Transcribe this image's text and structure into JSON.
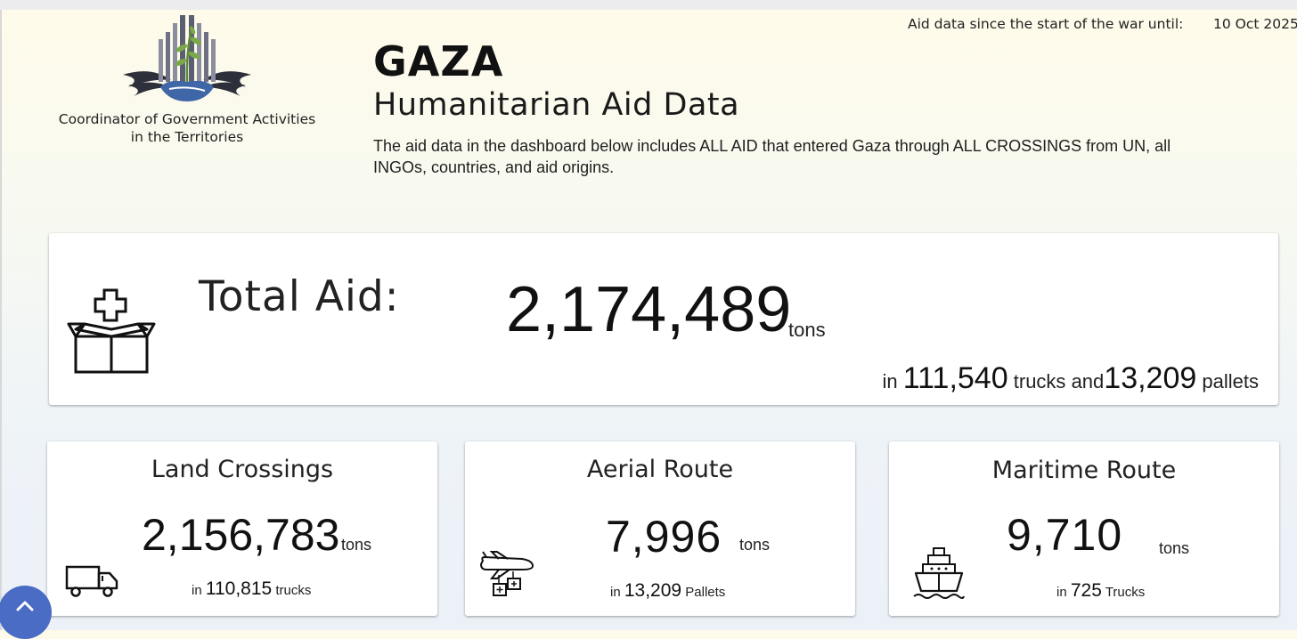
{
  "header": {
    "org_line1": "Coordinator of Government Activities",
    "org_line2": "in the Territories",
    "title": "GAZA",
    "subtitle": "Humanitarian Aid Data",
    "description": "The aid data in the dashboard below includes ALL AID that entered Gaza through ALL CROSSINGS from UN, all INGOs, countries, and aid origins.",
    "date_label": "Aid data since the start of the war until:",
    "date_value": "10 Oct 2025"
  },
  "total": {
    "label": "Total Aid:",
    "tons": "2,174,489",
    "tons_unit": "tons",
    "in_label": "in",
    "trucks": "111,540",
    "trucks_unit": "trucks",
    "and_label": "and",
    "pallets": "13,209",
    "pallets_unit": "pallets",
    "icon": "aid-box-icon"
  },
  "routes": [
    {
      "title": "Land Crossings",
      "tons": "2,156,783",
      "unit": "tons",
      "in_label": "in",
      "count": "110,815",
      "count_unit": "trucks",
      "icon": "truck-icon"
    },
    {
      "title": "Aerial Route",
      "tons": "7,996",
      "unit": "tons",
      "in_label": "in",
      "count": "13,209",
      "count_unit": "Pallets",
      "icon": "airdrop-icon"
    },
    {
      "title": "Maritime Route",
      "tons": "9,710",
      "unit": "tons",
      "in_label": "in",
      "count": "725",
      "count_unit": "Trucks",
      "icon": "ship-icon"
    }
  ],
  "colors": {
    "accent": "#4b6cc4",
    "card": "#ffffff"
  }
}
